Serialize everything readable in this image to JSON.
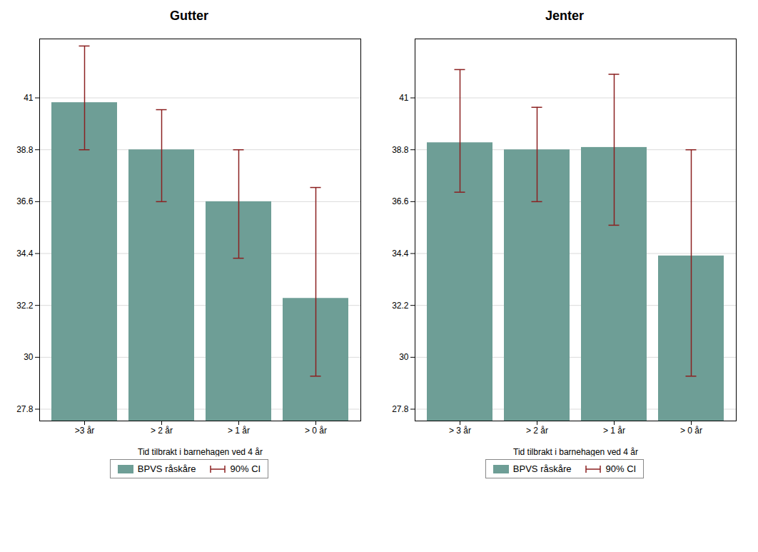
{
  "chart_data": [
    {
      "type": "bar",
      "title": "Gutter",
      "xlabel": "Tid tilbrakt i barnehagen ved 4 år",
      "categories": [
        ">3 år",
        "> 2 år",
        "> 1 år",
        "> 0 år"
      ],
      "series": [
        {
          "name": "BPVS råskåre",
          "color": "#6e9e96",
          "values": [
            40.8,
            38.8,
            36.6,
            32.5
          ]
        }
      ],
      "error_bars": {
        "name": "90% CI",
        "color": "#8b2020",
        "low": [
          38.8,
          36.6,
          34.2,
          29.2
        ],
        "high": [
          43.2,
          40.5,
          38.8,
          37.2
        ]
      },
      "ylim": [
        27.3,
        43.5
      ],
      "yticks": [
        27.8,
        30,
        32.2,
        34.4,
        36.6,
        38.8,
        41
      ],
      "grid": true,
      "legend": "bottom"
    },
    {
      "type": "bar",
      "title": "Jenter",
      "xlabel": "Tid tilbrakt i barnehagen ved 4 år",
      "categories": [
        "> 3 år",
        "> 2 år",
        "> 1 år",
        "> 0 år"
      ],
      "series": [
        {
          "name": "BPVS råskåre",
          "color": "#6e9e96",
          "values": [
            39.1,
            38.8,
            38.9,
            34.3
          ]
        }
      ],
      "error_bars": {
        "name": "90% CI",
        "color": "#8b2020",
        "low": [
          37.0,
          36.6,
          35.6,
          29.2
        ],
        "high": [
          42.2,
          40.6,
          42.0,
          38.8
        ]
      },
      "ylim": [
        27.3,
        43.5
      ],
      "yticks": [
        27.8,
        30,
        32.2,
        34.4,
        36.6,
        38.8,
        41
      ],
      "grid": true,
      "legend": "bottom"
    }
  ]
}
